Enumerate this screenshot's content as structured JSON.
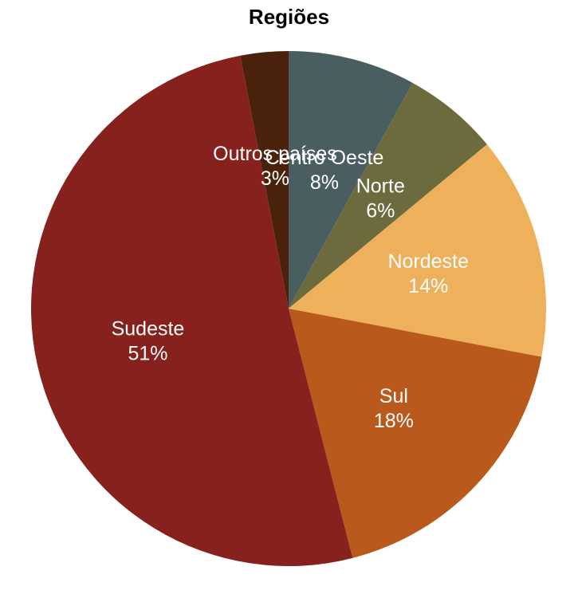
{
  "chart_data": {
    "type": "pie",
    "title": "Regiões",
    "start": "top",
    "direction": "clockwise",
    "slices": [
      {
        "label": "Centro Oeste",
        "value": 8,
        "value_label": "8%",
        "color": "#4a5e62"
      },
      {
        "label": "Norte",
        "value": 6,
        "value_label": "6%",
        "color": "#6b6b3e"
      },
      {
        "label": "Nordeste",
        "value": 14,
        "value_label": "14%",
        "color": "#eeb05a"
      },
      {
        "label": "Sul",
        "value": 18,
        "value_label": "18%",
        "color": "#b95a1c"
      },
      {
        "label": "Sudeste",
        "value": 51,
        "value_label": "51%",
        "color": "#86211e"
      },
      {
        "label": "Outros países",
        "value": 3,
        "value_label": "3%",
        "color": "#4a220c"
      }
    ]
  }
}
